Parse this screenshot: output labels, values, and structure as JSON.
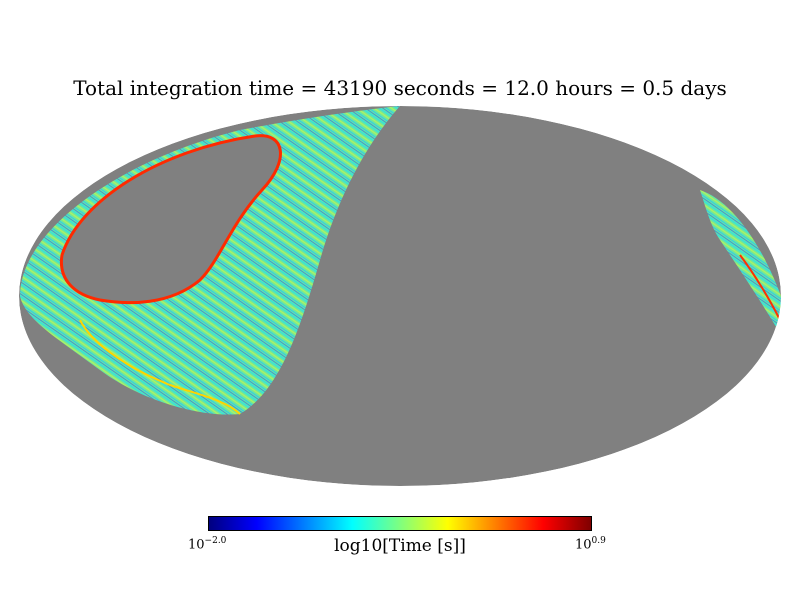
{
  "title": "Total integration time = 43190 seconds = 12.0 hours = 0.5 days",
  "colorbar": {
    "label": "log10[Time [s]]",
    "min_base": "10",
    "min_exp": "−2.0",
    "max_base": "10",
    "max_exp": "0.9",
    "colormap": "jet",
    "colors": [
      "#00007f",
      "#0000ff",
      "#007fff",
      "#00ffff",
      "#7fff7f",
      "#ffff00",
      "#ff7f00",
      "#ff0000",
      "#7f0000"
    ]
  },
  "map": {
    "projection": "Mollweide",
    "unobserved_color": "#808080"
  }
}
